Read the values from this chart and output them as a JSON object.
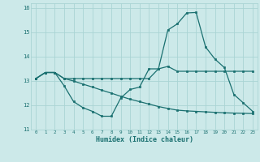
{
  "xlabel": "Humidex (Indice chaleur)",
  "xlim": [
    -0.5,
    23.5
  ],
  "ylim": [
    11,
    16.2
  ],
  "yticks": [
    11,
    12,
    13,
    14,
    15,
    16
  ],
  "xticks": [
    0,
    1,
    2,
    3,
    4,
    5,
    6,
    7,
    8,
    9,
    10,
    11,
    12,
    13,
    14,
    15,
    16,
    17,
    18,
    19,
    20,
    21,
    22,
    23
  ],
  "bg_color": "#cce9e9",
  "grid_color": "#aad4d4",
  "line_color": "#1a7070",
  "line1": [
    13.1,
    13.35,
    13.35,
    13.1,
    13.1,
    13.1,
    13.1,
    13.1,
    13.1,
    13.1,
    13.1,
    13.1,
    13.1,
    13.5,
    13.6,
    13.4,
    13.4,
    13.4,
    13.4,
    13.4,
    13.4,
    13.4,
    13.4,
    13.4
  ],
  "line2": [
    13.1,
    13.35,
    13.35,
    12.8,
    12.15,
    11.9,
    11.75,
    11.55,
    11.55,
    12.3,
    12.65,
    12.75,
    13.5,
    13.5,
    15.1,
    15.35,
    15.8,
    15.82,
    14.4,
    13.9,
    13.55,
    12.45,
    12.1,
    11.75
  ],
  "line3": [
    13.1,
    13.35,
    13.35,
    13.1,
    13.0,
    12.87,
    12.75,
    12.62,
    12.5,
    12.37,
    12.25,
    12.15,
    12.05,
    11.95,
    11.87,
    11.8,
    11.77,
    11.75,
    11.73,
    11.71,
    11.69,
    11.68,
    11.67,
    11.66
  ]
}
